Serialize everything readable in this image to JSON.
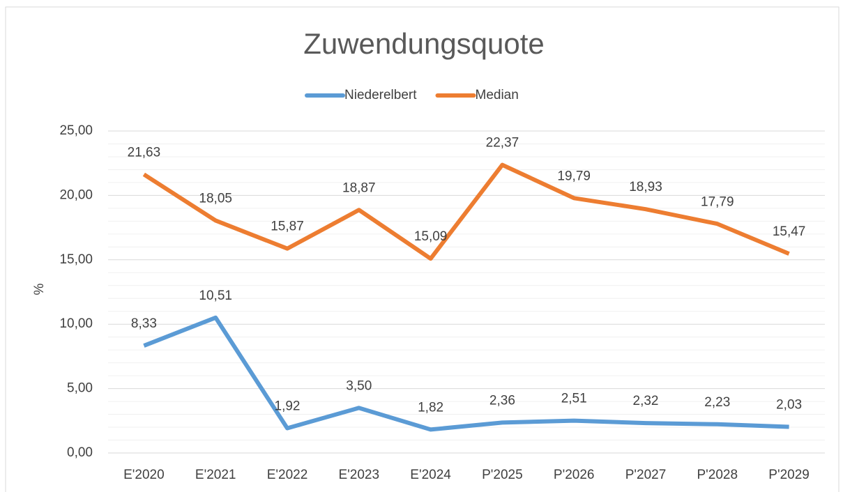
{
  "chart_data": {
    "type": "line",
    "title": "Zuwendungsquote",
    "y_label": "%",
    "categories": [
      "E'2020",
      "E'2021",
      "E'2022",
      "E'2023",
      "E'2024",
      "P'2025",
      "P'2026",
      "P'2027",
      "P'2028",
      "P'2029"
    ],
    "series": [
      {
        "name": "Niederelbert",
        "color": "#5b9bd5",
        "values": [
          8.33,
          10.51,
          1.92,
          3.5,
          1.82,
          2.36,
          2.51,
          2.32,
          2.23,
          2.03
        ],
        "value_labels": [
          "8,33",
          "10,51",
          "1,92",
          "3,50",
          "1,82",
          "2,36",
          "2,51",
          "2,32",
          "2,23",
          "2,03"
        ]
      },
      {
        "name": "Median",
        "color": "#ed7d31",
        "values": [
          21.63,
          18.05,
          15.87,
          18.87,
          15.09,
          22.37,
          19.79,
          18.93,
          17.79,
          15.47
        ],
        "value_labels": [
          "21,63",
          "18,05",
          "15,87",
          "18,87",
          "15,09",
          "22,37",
          "19,79",
          "18,93",
          "17,79",
          "15,47"
        ]
      }
    ],
    "ylim": [
      0,
      25
    ],
    "yticks": [
      {
        "value": 0,
        "label": "0,00"
      },
      {
        "value": 5,
        "label": "5,00"
      },
      {
        "value": 10,
        "label": "10,00"
      },
      {
        "value": 15,
        "label": "15,00"
      },
      {
        "value": 20,
        "label": "20,00"
      },
      {
        "value": 25,
        "label": "25,00"
      }
    ],
    "grid": true,
    "minor_grid": true,
    "legend": "top"
  }
}
